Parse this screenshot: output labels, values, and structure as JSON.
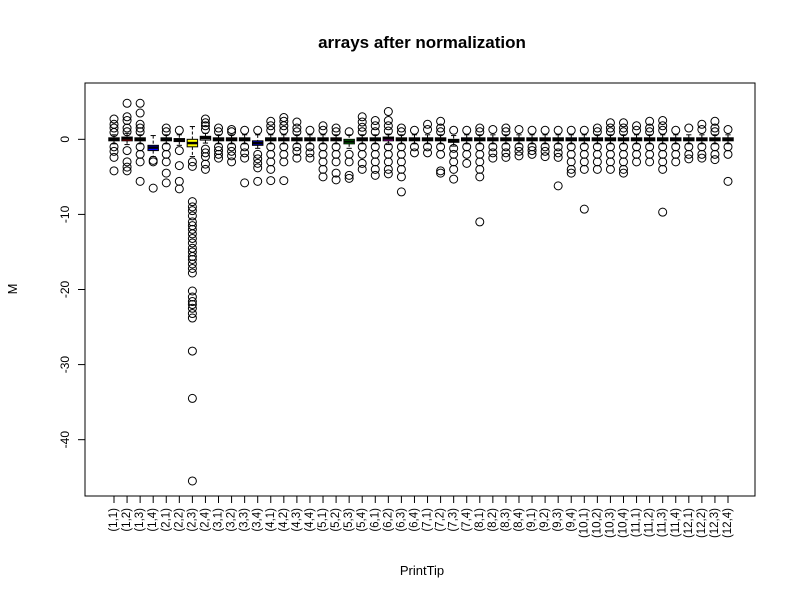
{
  "chart_data": {
    "type": "boxplot",
    "title": "arrays after normalization",
    "xlabel": "PrintTip",
    "ylabel": "M",
    "ylim": [
      -47.5,
      7.5
    ],
    "yticks": [
      0,
      -10,
      -20,
      -30,
      -40
    ],
    "grid": false,
    "legend": "none",
    "categories": [
      "(1,1)",
      "(1,2)",
      "(1,3)",
      "(1,4)",
      "(2,1)",
      "(2,2)",
      "(2,3)",
      "(2,4)",
      "(3,1)",
      "(3,2)",
      "(3,3)",
      "(3,4)",
      "(4,1)",
      "(4,2)",
      "(4,3)",
      "(4,4)",
      "(5,1)",
      "(5,2)",
      "(5,3)",
      "(5,4)",
      "(6,1)",
      "(6,2)",
      "(6,3)",
      "(6,4)",
      "(7,1)",
      "(7,2)",
      "(7,3)",
      "(7,4)",
      "(8,1)",
      "(8,2)",
      "(8,3)",
      "(8,4)",
      "(9,1)",
      "(9,2)",
      "(9,3)",
      "(9,4)",
      "(10,1)",
      "(10,2)",
      "(10,3)",
      "(10,4)",
      "(11,1)",
      "(11,2)",
      "(11,3)",
      "(11,4)",
      "(12,1)",
      "(12,2)",
      "(12,3)",
      "(12,4)"
    ],
    "box_colors": [
      "#000000",
      "#ff0000",
      "#00cd00",
      "#0000ff",
      "#00ffff",
      "#ff00ff",
      "#ffff00",
      "#bebebe"
    ],
    "outlier_color": "#000000",
    "boxes": [
      {
        "q1": -0.2,
        "median": 0.0,
        "q3": 0.2,
        "lower": -0.6,
        "upper": 0.6,
        "outliers": [
          2.7,
          2.0,
          1.5,
          0.9,
          -1.0,
          -1.6,
          -2.4,
          -4.2
        ]
      },
      {
        "q1": -0.2,
        "median": 0.1,
        "q3": 0.3,
        "lower": -0.7,
        "upper": 0.8,
        "outliers": [
          4.8,
          3.0,
          2.5,
          1.5,
          1.0,
          -1.5,
          -3.0,
          -3.7,
          -4.2
        ]
      },
      {
        "q1": -0.2,
        "median": 0.0,
        "q3": 0.2,
        "lower": -0.6,
        "upper": 0.6,
        "outliers": [
          4.8,
          3.5,
          2.0,
          1.5,
          1.0,
          -1.0,
          -2.0,
          -3.0,
          -5.6
        ]
      },
      {
        "q1": -1.5,
        "median": -1.1,
        "q3": -0.8,
        "lower": -2.3,
        "upper": 0.5,
        "outliers": [
          -2.8,
          -3.0,
          -6.5
        ]
      },
      {
        "q1": -0.2,
        "median": 0.0,
        "q3": 0.2,
        "lower": -0.6,
        "upper": 0.6,
        "outliers": [
          1.5,
          1.0,
          -1.0,
          -2.0,
          -3.0,
          -4.5,
          -5.8
        ]
      },
      {
        "q1": -0.3,
        "median": -0.1,
        "q3": 0.1,
        "lower": -0.8,
        "upper": 0.6,
        "outliers": [
          1.2,
          -1.5,
          -3.5,
          -5.6,
          -6.6
        ]
      },
      {
        "q1": -1.0,
        "median": -0.5,
        "q3": 0.0,
        "lower": -2.3,
        "upper": 1.7,
        "outliers": [
          -3.0,
          -3.6,
          -8.3,
          -9.0,
          -9.5,
          -10.2,
          -11.0,
          -11.5,
          -12.0,
          -12.6,
          -13.2,
          -13.8,
          -14.5,
          -15.0,
          -15.6,
          -16.0,
          -16.6,
          -17.2,
          -17.8,
          -20.2,
          -21.0,
          -21.6,
          -22.0,
          -22.5,
          -23.2,
          -23.8,
          -28.2,
          -34.5,
          -45.5
        ]
      },
      {
        "q1": -0.1,
        "median": 0.2,
        "q3": 0.4,
        "lower": -0.5,
        "upper": 0.8,
        "outliers": [
          2.7,
          2.2,
          1.8,
          1.3,
          -1.3,
          -1.8,
          -2.3,
          -3.3,
          -4.0
        ]
      },
      {
        "q1": -0.2,
        "median": 0.0,
        "q3": 0.2,
        "lower": -0.6,
        "upper": 0.6,
        "outliers": [
          1.5,
          1.0,
          -1.0,
          -1.5,
          -2.0,
          -2.5
        ]
      },
      {
        "q1": -0.2,
        "median": 0.0,
        "q3": 0.2,
        "lower": -0.6,
        "upper": 0.6,
        "outliers": [
          1.3,
          1.0,
          -1.0,
          -1.6,
          -2.2,
          -3.0
        ]
      },
      {
        "q1": -0.2,
        "median": 0.0,
        "q3": 0.2,
        "lower": -0.6,
        "upper": 0.6,
        "outliers": [
          1.2,
          -1.0,
          -1.8,
          -2.5,
          -5.8
        ]
      },
      {
        "q1": -0.8,
        "median": -0.5,
        "q3": -0.2,
        "lower": -1.2,
        "upper": 0.6,
        "outliers": [
          1.2,
          -2.0,
          -2.6,
          -3.2,
          -3.8,
          -5.6
        ]
      },
      {
        "q1": -0.2,
        "median": 0.0,
        "q3": 0.2,
        "lower": -0.6,
        "upper": 0.6,
        "outliers": [
          2.4,
          1.8,
          1.2,
          -1.0,
          -2.0,
          -3.0,
          -4.0,
          -5.5
        ]
      },
      {
        "q1": -0.2,
        "median": 0.0,
        "q3": 0.2,
        "lower": -0.6,
        "upper": 0.6,
        "outliers": [
          2.9,
          2.4,
          1.8,
          1.2,
          -1.0,
          -2.0,
          -3.0,
          -5.5
        ]
      },
      {
        "q1": -0.2,
        "median": 0.0,
        "q3": 0.2,
        "lower": -0.6,
        "upper": 0.6,
        "outliers": [
          2.3,
          1.5,
          1.0,
          -1.0,
          -1.6,
          -2.5
        ]
      },
      {
        "q1": -0.2,
        "median": 0.0,
        "q3": 0.2,
        "lower": -0.6,
        "upper": 0.6,
        "outliers": [
          1.2,
          -1.0,
          -1.8,
          -2.5
        ]
      },
      {
        "q1": -0.2,
        "median": 0.0,
        "q3": 0.2,
        "lower": -0.6,
        "upper": 0.6,
        "outliers": [
          1.8,
          1.2,
          -1.0,
          -2.0,
          -3.0,
          -4.0,
          -5.0
        ]
      },
      {
        "q1": -0.2,
        "median": 0.0,
        "q3": 0.2,
        "lower": -0.6,
        "upper": 0.6,
        "outliers": [
          1.5,
          1.0,
          -1.0,
          -2.0,
          -3.0,
          -4.5,
          -5.4
        ]
      },
      {
        "q1": -0.6,
        "median": -0.3,
        "q3": 0.0,
        "lower": -1.2,
        "upper": 0.6,
        "outliers": [
          1.0,
          -2.0,
          -3.0,
          -4.8,
          -5.2
        ]
      },
      {
        "q1": -0.2,
        "median": 0.0,
        "q3": 0.2,
        "lower": -0.6,
        "upper": 0.6,
        "outliers": [
          3.0,
          2.3,
          1.6,
          1.0,
          -1.0,
          -2.0,
          -3.2,
          -4.0
        ]
      },
      {
        "q1": -0.2,
        "median": 0.0,
        "q3": 0.2,
        "lower": -0.6,
        "upper": 0.6,
        "outliers": [
          2.5,
          1.8,
          1.0,
          -1.0,
          -2.0,
          -3.0,
          -4.0,
          -4.8
        ]
      },
      {
        "q1": -0.2,
        "median": 0.1,
        "q3": 0.3,
        "lower": -0.7,
        "upper": 0.7,
        "outliers": [
          3.7,
          2.5,
          1.8,
          1.1,
          -1.0,
          -2.0,
          -3.0,
          -4.0,
          -4.6
        ]
      },
      {
        "q1": -0.2,
        "median": 0.0,
        "q3": 0.2,
        "lower": -0.6,
        "upper": 0.6,
        "outliers": [
          1.5,
          1.0,
          -1.0,
          -2.0,
          -3.0,
          -4.0,
          -5.0,
          -7.0
        ]
      },
      {
        "q1": -0.2,
        "median": 0.0,
        "q3": 0.2,
        "lower": -0.6,
        "upper": 0.6,
        "outliers": [
          1.2,
          -1.0,
          -1.8
        ]
      },
      {
        "q1": -0.2,
        "median": 0.0,
        "q3": 0.2,
        "lower": -0.6,
        "upper": 0.6,
        "outliers": [
          2.0,
          1.3,
          -1.0,
          -1.8
        ]
      },
      {
        "q1": -0.2,
        "median": 0.0,
        "q3": 0.2,
        "lower": -0.6,
        "upper": 0.6,
        "outliers": [
          2.4,
          1.5,
          1.0,
          -1.0,
          -2.0,
          -4.2,
          -4.5
        ]
      },
      {
        "q1": -0.4,
        "median": -0.2,
        "q3": 0.0,
        "lower": -0.9,
        "upper": 0.5,
        "outliers": [
          1.2,
          -1.2,
          -2.0,
          -3.0,
          -4.0,
          -5.3
        ]
      },
      {
        "q1": -0.2,
        "median": 0.0,
        "q3": 0.2,
        "lower": -0.6,
        "upper": 0.6,
        "outliers": [
          1.2,
          -1.0,
          -2.0,
          -3.2
        ]
      },
      {
        "q1": -0.2,
        "median": 0.0,
        "q3": 0.2,
        "lower": -0.6,
        "upper": 0.6,
        "outliers": [
          1.5,
          1.0,
          -1.0,
          -2.0,
          -3.0,
          -4.0,
          -5.0,
          -11.0
        ]
      },
      {
        "q1": -0.2,
        "median": 0.0,
        "q3": 0.2,
        "lower": -0.6,
        "upper": 0.6,
        "outliers": [
          1.3,
          -1.0,
          -1.8,
          -2.5
        ]
      },
      {
        "q1": -0.2,
        "median": 0.0,
        "q3": 0.2,
        "lower": -0.6,
        "upper": 0.6,
        "outliers": [
          1.5,
          1.0,
          -1.0,
          -1.8,
          -2.4
        ]
      },
      {
        "q1": -0.2,
        "median": 0.0,
        "q3": 0.2,
        "lower": -0.6,
        "upper": 0.6,
        "outliers": [
          1.3,
          -1.0,
          -1.6,
          -2.2
        ]
      },
      {
        "q1": -0.2,
        "median": 0.0,
        "q3": 0.2,
        "lower": -0.6,
        "upper": 0.6,
        "outliers": [
          1.2,
          -1.0,
          -1.5,
          -2.0
        ]
      },
      {
        "q1": -0.2,
        "median": 0.0,
        "q3": 0.2,
        "lower": -0.6,
        "upper": 0.6,
        "outliers": [
          1.2,
          -1.0,
          -1.6,
          -2.3
        ]
      },
      {
        "q1": -0.2,
        "median": 0.0,
        "q3": 0.2,
        "lower": -0.6,
        "upper": 0.6,
        "outliers": [
          1.2,
          -1.0,
          -1.8,
          -2.4,
          -6.2
        ]
      },
      {
        "q1": -0.2,
        "median": 0.0,
        "q3": 0.2,
        "lower": -0.6,
        "upper": 0.6,
        "outliers": [
          1.2,
          -1.0,
          -2.0,
          -3.0,
          -4.0,
          -4.5
        ]
      },
      {
        "q1": -0.2,
        "median": 0.0,
        "q3": 0.2,
        "lower": -0.6,
        "upper": 0.6,
        "outliers": [
          1.2,
          -1.0,
          -2.0,
          -3.0,
          -4.0,
          -9.3
        ]
      },
      {
        "q1": -0.2,
        "median": 0.0,
        "q3": 0.2,
        "lower": -0.6,
        "upper": 0.6,
        "outliers": [
          1.5,
          1.0,
          -1.0,
          -2.0,
          -3.0,
          -4.0
        ]
      },
      {
        "q1": -0.2,
        "median": 0.0,
        "q3": 0.2,
        "lower": -0.6,
        "upper": 0.6,
        "outliers": [
          2.2,
          1.5,
          1.0,
          -1.0,
          -2.0,
          -3.0,
          -4.0
        ]
      },
      {
        "q1": -0.2,
        "median": 0.0,
        "q3": 0.2,
        "lower": -0.6,
        "upper": 0.6,
        "outliers": [
          2.2,
          1.5,
          1.0,
          -1.0,
          -2.0,
          -3.0,
          -4.0,
          -4.5
        ]
      },
      {
        "q1": -0.2,
        "median": 0.0,
        "q3": 0.2,
        "lower": -0.6,
        "upper": 0.6,
        "outliers": [
          1.8,
          1.2,
          -1.0,
          -2.0,
          -3.0
        ]
      },
      {
        "q1": -0.2,
        "median": 0.0,
        "q3": 0.2,
        "lower": -0.6,
        "upper": 0.6,
        "outliers": [
          2.4,
          1.5,
          1.0,
          -1.0,
          -2.0,
          -3.0
        ]
      },
      {
        "q1": -0.2,
        "median": 0.0,
        "q3": 0.2,
        "lower": -0.6,
        "upper": 0.6,
        "outliers": [
          2.5,
          1.8,
          1.2,
          -1.0,
          -2.0,
          -3.0,
          -4.0,
          -9.7
        ]
      },
      {
        "q1": -0.2,
        "median": 0.0,
        "q3": 0.2,
        "lower": -0.6,
        "upper": 0.6,
        "outliers": [
          1.2,
          -1.0,
          -2.0,
          -3.0
        ]
      },
      {
        "q1": -0.2,
        "median": 0.0,
        "q3": 0.2,
        "lower": -0.6,
        "upper": 0.6,
        "outliers": [
          1.5,
          -1.0,
          -2.0,
          -2.6
        ]
      },
      {
        "q1": -0.2,
        "median": 0.0,
        "q3": 0.2,
        "lower": -0.6,
        "upper": 0.6,
        "outliers": [
          2.0,
          1.3,
          -1.0,
          -2.0,
          -2.5
        ]
      },
      {
        "q1": -0.2,
        "median": 0.0,
        "q3": 0.2,
        "lower": -0.6,
        "upper": 0.6,
        "outliers": [
          2.4,
          1.5,
          1.0,
          -1.0,
          -2.0,
          -2.7
        ]
      },
      {
        "q1": -0.2,
        "median": 0.0,
        "q3": 0.2,
        "lower": -0.6,
        "upper": 0.6,
        "outliers": [
          1.3,
          -1.0,
          -2.0,
          -5.6
        ]
      }
    ]
  }
}
